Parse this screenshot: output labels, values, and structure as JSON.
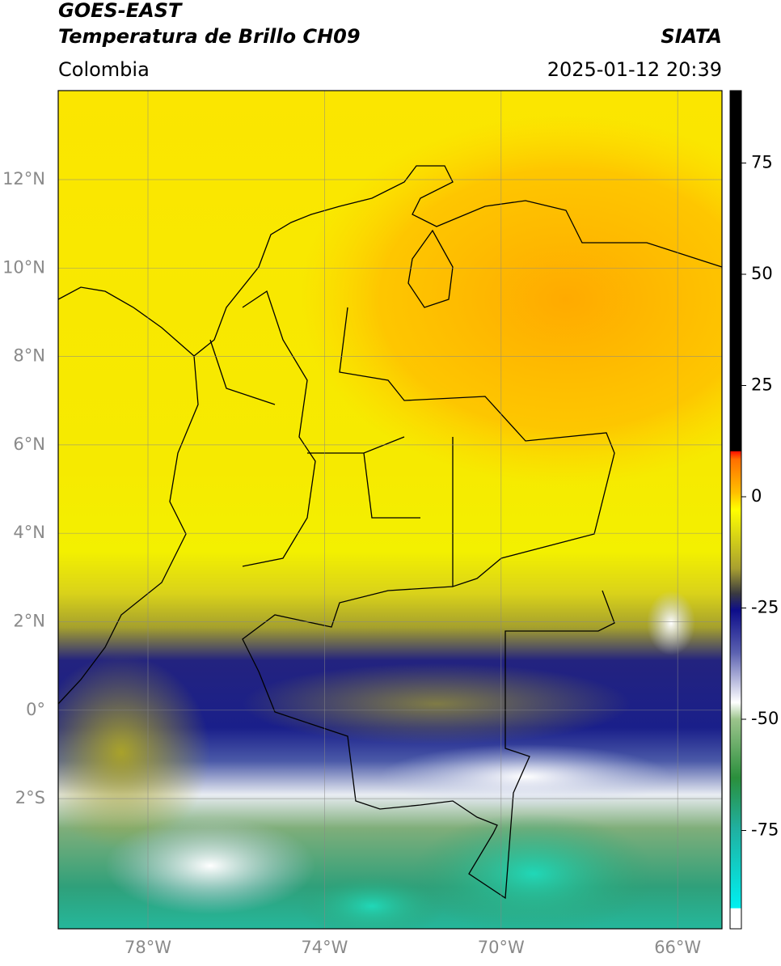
{
  "header": {
    "title": "GOES-EAST",
    "subtitle": "Temperatura de Brillo CH09",
    "source": "SIATA",
    "region": "Colombia",
    "datetime": "2025-01-12 20:39"
  },
  "map": {
    "lat_labels": [
      "12°N",
      "10°N",
      "8°N",
      "6°N",
      "4°N",
      "2°N",
      "0°",
      "2°S"
    ],
    "lon_labels": [
      "78°W",
      "74°W",
      "70°W",
      "66°W"
    ]
  },
  "colorbar": {
    "ticks": [
      75,
      50,
      25,
      0,
      -25,
      -50,
      -75
    ]
  }
}
